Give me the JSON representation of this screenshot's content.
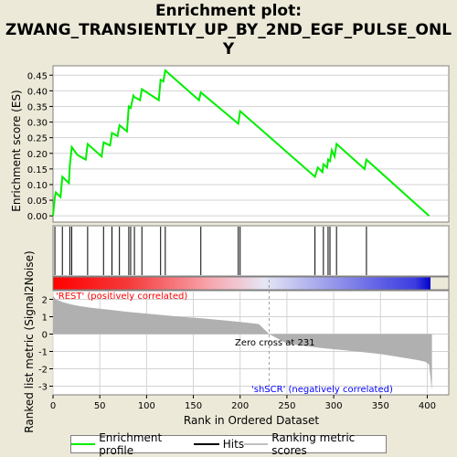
{
  "title_line1": "Enrichment plot:",
  "title_line2": "ZWANG_TRANSIENTLY_UP_BY_2ND_EGF_PULSE_ONL",
  "title_line3": "Y",
  "colors": {
    "enrichment": "#00ee00",
    "hits": "#000000",
    "metric_fill": "#b0b0b0",
    "positive_label": "#ff0000",
    "negative_label": "#0000ff",
    "grid": "#d3d3d3"
  },
  "chart_data": [
    {
      "type": "line",
      "name": "enrichment-score",
      "ylabel": "Enrichment score (ES)",
      "ylim": [
        -0.02,
        0.48
      ],
      "xlim": [
        0,
        423
      ],
      "yticks": [
        0.0,
        0.05,
        0.1,
        0.15,
        0.2,
        0.25,
        0.3,
        0.35,
        0.4,
        0.45
      ],
      "ytick_labels": [
        "0.00",
        "0.05",
        "0.10",
        "0.15",
        "0.20",
        "0.25",
        "0.30",
        "0.35",
        "0.40",
        "0.45"
      ],
      "grid": true,
      "series": [
        {
          "name": "Enrichment profile",
          "x": [
            0,
            2,
            3,
            8,
            10,
            17,
            18,
            20,
            26,
            35,
            37,
            52,
            54,
            61,
            63,
            69,
            71,
            79,
            81,
            83,
            86,
            87,
            93,
            95,
            113,
            115,
            118,
            120,
            156,
            158,
            198,
            200,
            280,
            283,
            288,
            289,
            293,
            294,
            296,
            298,
            301,
            303,
            333,
            335,
            402
          ],
          "y": [
            0.0,
            0.06,
            0.075,
            0.06,
            0.125,
            0.105,
            0.16,
            0.22,
            0.195,
            0.18,
            0.23,
            0.19,
            0.235,
            0.225,
            0.265,
            0.255,
            0.29,
            0.27,
            0.35,
            0.345,
            0.385,
            0.38,
            0.37,
            0.405,
            0.37,
            0.435,
            0.43,
            0.465,
            0.37,
            0.395,
            0.295,
            0.335,
            0.125,
            0.155,
            0.14,
            0.165,
            0.155,
            0.18,
            0.175,
            0.21,
            0.19,
            0.23,
            0.15,
            0.18,
            0.0
          ]
        }
      ]
    },
    {
      "type": "scatter",
      "name": "hits",
      "legend": "Hits",
      "x": [
        2,
        10,
        18,
        20,
        37,
        54,
        63,
        71,
        81,
        83,
        87,
        95,
        115,
        120,
        158,
        198,
        200,
        280,
        289,
        294,
        296,
        303,
        335
      ]
    },
    {
      "type": "area",
      "name": "ranked-list-metric",
      "legend": "Ranking metric scores",
      "xlabel": "Rank in Ordered Dataset",
      "ylabel": "Ranked list metric (Signal2Noise)",
      "ylim": [
        -3.5,
        2.5
      ],
      "xlim": [
        0,
        423
      ],
      "yticks": [
        -3,
        -2,
        -1,
        0,
        1,
        2
      ],
      "ytick_labels": [
        "-3",
        "-2",
        "-1",
        "0",
        "1",
        "2"
      ],
      "xticks": [
        0,
        50,
        100,
        150,
        200,
        250,
        300,
        350,
        400
      ],
      "xtick_labels": [
        "0",
        "50",
        "100",
        "150",
        "200",
        "250",
        "300",
        "350",
        "400"
      ],
      "x": [
        0,
        3,
        10,
        20,
        30,
        40,
        60,
        80,
        100,
        120,
        140,
        160,
        180,
        200,
        220,
        231,
        250,
        270,
        290,
        310,
        330,
        350,
        370,
        390,
        398,
        402,
        404,
        405
      ],
      "y": [
        2.2,
        2.0,
        1.85,
        1.7,
        1.6,
        1.52,
        1.4,
        1.28,
        1.18,
        1.08,
        0.98,
        0.9,
        0.8,
        0.7,
        0.58,
        0.0,
        -0.55,
        -0.7,
        -0.82,
        -0.92,
        -1.03,
        -1.15,
        -1.32,
        -1.5,
        -1.6,
        -1.75,
        -2.8,
        -3.2
      ],
      "zero_cross_rank": 231,
      "zero_cross_label": "Zero cross at 231",
      "positive_label": "'REST' (positively correlated)",
      "negative_label": "'shSCR' (negatively correlated)"
    }
  ],
  "legend": {
    "enrichment_label": "Enrichment profile",
    "hits_label": "Hits",
    "metric_label": "Ranking metric scores"
  }
}
